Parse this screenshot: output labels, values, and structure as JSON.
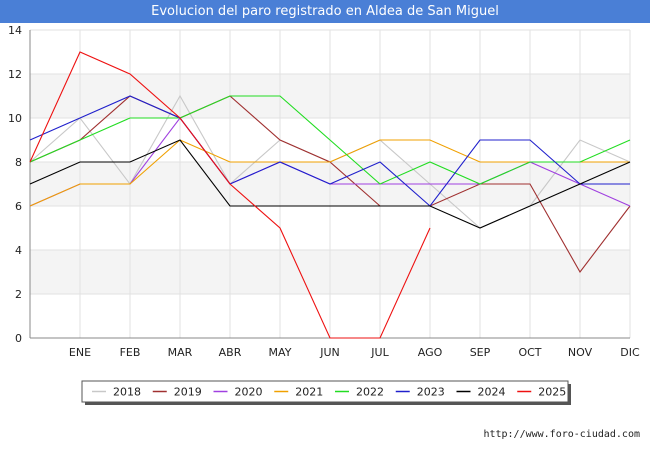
{
  "header": {
    "title": "Evolucion del paro registrado en Aldea de San Miguel"
  },
  "footer": {
    "url": "http://www.foro-ciudad.com"
  },
  "chart_data": {
    "type": "line",
    "title": "Evolucion del paro registrado en Aldea de San Miguel",
    "categories": [
      "ENE",
      "FEB",
      "MAR",
      "ABR",
      "MAY",
      "JUN",
      "JUL",
      "AGO",
      "SEP",
      "OCT",
      "NOV",
      "DIC"
    ],
    "ylim": [
      0,
      14
    ],
    "yticks": [
      0,
      2,
      4,
      6,
      8,
      10,
      12,
      14
    ],
    "grid": true,
    "legend_position": "bottom",
    "series": [
      {
        "name": "2018",
        "color": "#c8c8c8",
        "start": 8,
        "values": [
          10,
          7,
          11,
          7,
          9,
          8,
          9,
          7,
          5,
          6,
          9,
          8
        ]
      },
      {
        "name": "2019",
        "color": "#a03030",
        "start": 8,
        "values": [
          9,
          11,
          10,
          11,
          9,
          8,
          6,
          6,
          7,
          7,
          3,
          6
        ]
      },
      {
        "name": "2020",
        "color": "#a040e0",
        "start": 6,
        "values": [
          7,
          7,
          10,
          7,
          8,
          7,
          7,
          7,
          7,
          8,
          7,
          6
        ]
      },
      {
        "name": "2021",
        "color": "#f0a000",
        "start": 6,
        "values": [
          7,
          7,
          9,
          8,
          8,
          8,
          9,
          9,
          8,
          8,
          8,
          8
        ]
      },
      {
        "name": "2022",
        "color": "#22dd22",
        "start": 8,
        "values": [
          9,
          10,
          10,
          11,
          11,
          9,
          7,
          8,
          7,
          8,
          8,
          9
        ]
      },
      {
        "name": "2023",
        "color": "#2020cc",
        "start": 9,
        "values": [
          10,
          11,
          10,
          7,
          8,
          7,
          8,
          6,
          9,
          9,
          7,
          7
        ]
      },
      {
        "name": "2024",
        "color": "#000000",
        "start": 7,
        "values": [
          8,
          8,
          9,
          6,
          6,
          6,
          6,
          6,
          5,
          6,
          7,
          8
        ]
      },
      {
        "name": "2025",
        "color": "#ee1111",
        "start": 8,
        "values": [
          13,
          12,
          10,
          7,
          5,
          0,
          0,
          5,
          null,
          null,
          null,
          null
        ]
      }
    ]
  }
}
